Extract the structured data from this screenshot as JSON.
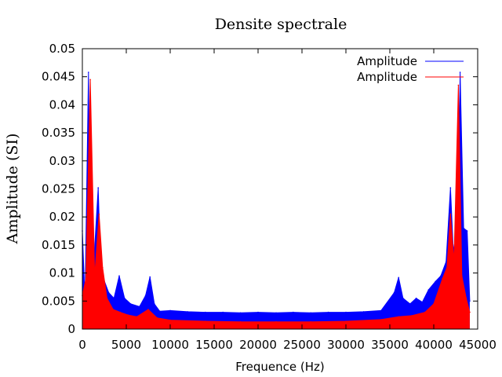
{
  "chart_data": {
    "type": "line",
    "title": "Densite spectrale",
    "xlabel": "Frequence (Hz)",
    "ylabel": "Amplitude (SI)",
    "xlim": [
      0,
      45000
    ],
    "ylim": [
      0,
      0.05
    ],
    "x_ticks": [
      "0",
      "5000",
      "10000",
      "15000",
      "20000",
      "25000",
      "30000",
      "35000",
      "40000",
      "45000"
    ],
    "y_ticks": [
      "0",
      "0.005",
      "0.01",
      "0.015",
      "0.02",
      "0.025",
      "0.03",
      "0.035",
      "0.04",
      "0.045",
      "0.05"
    ],
    "grid": false,
    "legend_position": "top-right",
    "series": [
      {
        "name": "Amplitude",
        "color": "#0000ff",
        "x": [
          0,
          300,
          700,
          900,
          1300,
          1800,
          2000,
          2400,
          3000,
          3600,
          4200,
          4800,
          5500,
          6500,
          7200,
          7700,
          8200,
          8800,
          10000,
          12000,
          14000,
          16000,
          18000,
          20000,
          22050,
          24000,
          26000,
          28000,
          30000,
          32000,
          34000,
          35500,
          36000,
          36500,
          37300,
          38000,
          38700,
          39400,
          40200,
          40800,
          41400,
          41900,
          42200,
          42700,
          43000,
          43400,
          43800,
          44100
        ],
        "values": [
          0.0175,
          0.005,
          0.0458,
          0.008,
          0.012,
          0.0252,
          0.015,
          0.009,
          0.0065,
          0.0055,
          0.0095,
          0.0055,
          0.0045,
          0.004,
          0.006,
          0.0093,
          0.0045,
          0.0032,
          0.0033,
          0.0031,
          0.003,
          0.003,
          0.0029,
          0.003,
          0.0029,
          0.003,
          0.0029,
          0.003,
          0.003,
          0.0031,
          0.0033,
          0.0065,
          0.0092,
          0.0055,
          0.0045,
          0.0055,
          0.0048,
          0.007,
          0.0085,
          0.0095,
          0.012,
          0.0252,
          0.015,
          0.012,
          0.0458,
          0.018,
          0.0175,
          0.005
        ]
      },
      {
        "name": "Amplitude",
        "color": "#ff0000",
        "x": [
          0,
          400,
          900,
          1400,
          1900,
          2300,
          2800,
          3500,
          4300,
          5200,
          6200,
          7500,
          8500,
          10000,
          14000,
          18000,
          22050,
          26000,
          30000,
          34000,
          36000,
          37500,
          39000,
          40000,
          41000,
          41500,
          41900,
          42300,
          42800,
          43200,
          43700,
          44100
        ],
        "values": [
          0.006,
          0.009,
          0.0445,
          0.0095,
          0.0205,
          0.011,
          0.0055,
          0.0035,
          0.003,
          0.0025,
          0.0022,
          0.0035,
          0.002,
          0.0016,
          0.0014,
          0.0013,
          0.0013,
          0.0013,
          0.0014,
          0.0017,
          0.0022,
          0.0024,
          0.003,
          0.0045,
          0.009,
          0.011,
          0.0205,
          0.012,
          0.0435,
          0.0095,
          0.0055,
          0.003
        ]
      }
    ]
  }
}
